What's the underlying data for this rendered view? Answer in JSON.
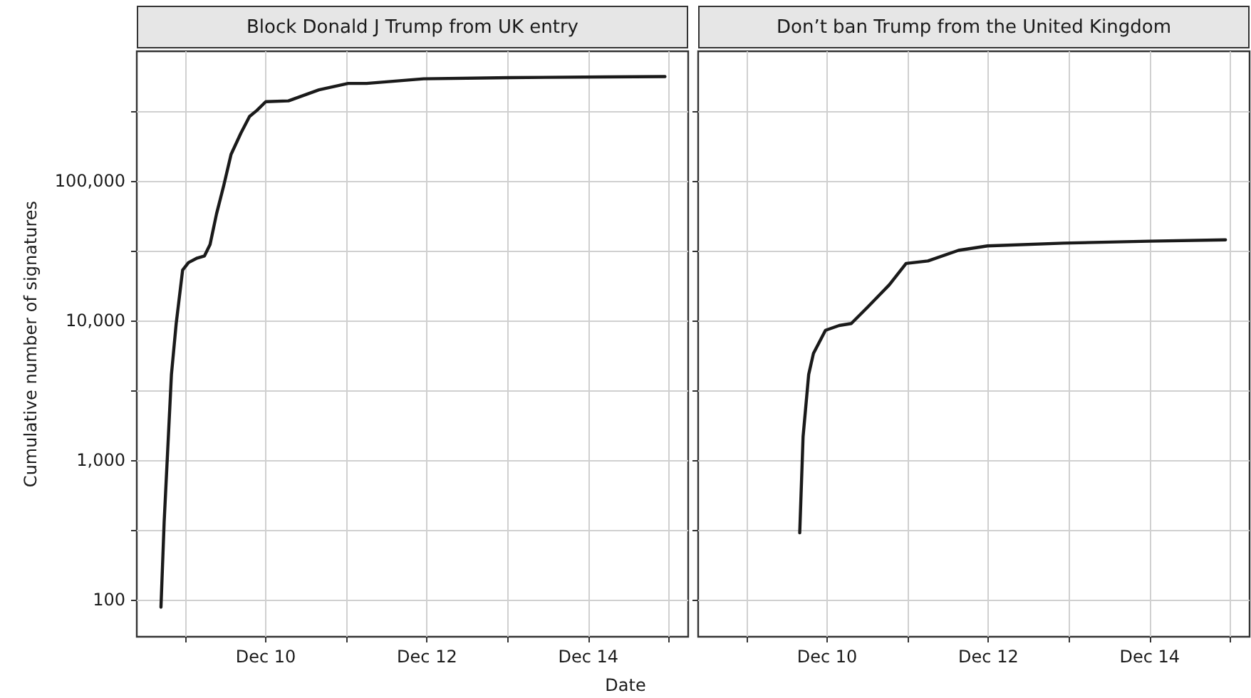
{
  "chart_data": [
    {
      "type": "line",
      "title": "Block Donald J Trump from UK entry",
      "ylabel": "Cumulative number of signatures",
      "xlabel": "Date",
      "log": "y",
      "grid": true,
      "xlim": [
        "--12-08T09:36",
        "--12-15T05:45"
      ],
      "xticks": [
        {
          "value": "--12-09",
          "label": null
        },
        {
          "value": "--12-10",
          "label": "Dec 10"
        },
        {
          "value": "--12-11",
          "label": null
        },
        {
          "value": "--12-12",
          "label": "Dec 12"
        },
        {
          "value": "--12-13",
          "label": null
        },
        {
          "value": "--12-14",
          "label": "Dec 14"
        },
        {
          "value": "--12-15",
          "label": null
        }
      ],
      "ylim": [
        54,
        850000
      ],
      "yticks": [
        {
          "value": 100,
          "label": "100"
        },
        {
          "value": 316,
          "label": null
        },
        {
          "value": 1000,
          "label": "1,000"
        },
        {
          "value": 3160,
          "label": null
        },
        {
          "value": 10000,
          "label": "10,000"
        },
        {
          "value": 31600,
          "label": null
        },
        {
          "value": 100000,
          "label": "100,000"
        },
        {
          "value": 316000,
          "label": null
        }
      ],
      "series": [
        {
          "color": "#1a1a1a",
          "x": [
            "--12-08T16:48",
            "--12-08T17:45",
            "--12-08T19:55",
            "--12-08T21:20",
            "--12-08T23:15",
            "--12-09T01:00",
            "--12-09T03:35",
            "--12-09T05:45",
            "--12-09T07:25",
            "--12-09T09:20",
            "--12-09T11:30",
            "--12-09T13:40",
            "--12-09T16:35",
            "--12-09T19:10",
            "--12-09T21:20",
            "--12-10T00:00",
            "--12-10T06:45",
            "--12-10T15:50",
            "--12-11T00:30",
            "--12-11T06:00",
            "--12-11T23:00",
            "--12-13T00:45",
            "--12-14T05:00",
            "--12-14T22:50"
          ],
          "values": [
            88,
            360,
            4100,
            9500,
            23000,
            26000,
            28000,
            29000,
            35000,
            58000,
            93000,
            155000,
            220000,
            290000,
            320000,
            370000,
            375000,
            450000,
            500000,
            500000,
            540000,
            550000,
            557000,
            560000
          ]
        }
      ]
    },
    {
      "type": "line",
      "title": "Don’t ban Trump from the United Kingdom",
      "log": "y",
      "grid": true,
      "tick_labels": "x",
      "xlim": [
        "--12-08T09:36",
        "--12-15T05:45"
      ],
      "xticks": [
        {
          "value": "--12-09",
          "label": null
        },
        {
          "value": "--12-10",
          "label": "Dec 10"
        },
        {
          "value": "--12-11",
          "label": null
        },
        {
          "value": "--12-12",
          "label": "Dec 12"
        },
        {
          "value": "--12-13",
          "label": null
        },
        {
          "value": "--12-14",
          "label": "Dec 14"
        },
        {
          "value": "--12-15",
          "label": null
        }
      ],
      "ylim": [
        54,
        850000
      ],
      "yticks": [
        {
          "value": 100,
          "label": null
        },
        {
          "value": 316,
          "label": null
        },
        {
          "value": 1000,
          "label": null
        },
        {
          "value": 3160,
          "label": null
        },
        {
          "value": 10000,
          "label": null
        },
        {
          "value": 31600,
          "label": null
        },
        {
          "value": 100000,
          "label": null
        },
        {
          "value": 316000,
          "label": null
        }
      ],
      "series": [
        {
          "color": "#1a1a1a",
          "x": [
            "--12-09T15:50",
            "--12-09T16:50",
            "--12-09T18:30",
            "--12-09T19:55",
            "--12-09T23:30",
            "--12-10T03:35",
            "--12-10T07:10",
            "--12-10T12:15",
            "--12-10T15:05",
            "--12-10T18:30",
            "--12-10T23:30",
            "--12-11T06:00",
            "--12-11T15:05",
            "--12-11T23:45",
            "--12-12T22:20",
            "--12-13T23:45",
            "--12-14T22:35"
          ],
          "values": [
            300,
            1470,
            4100,
            5800,
            8500,
            9200,
            9500,
            12600,
            14800,
            18000,
            25600,
            26700,
            31800,
            34200,
            35800,
            37000,
            37800
          ]
        }
      ]
    }
  ]
}
